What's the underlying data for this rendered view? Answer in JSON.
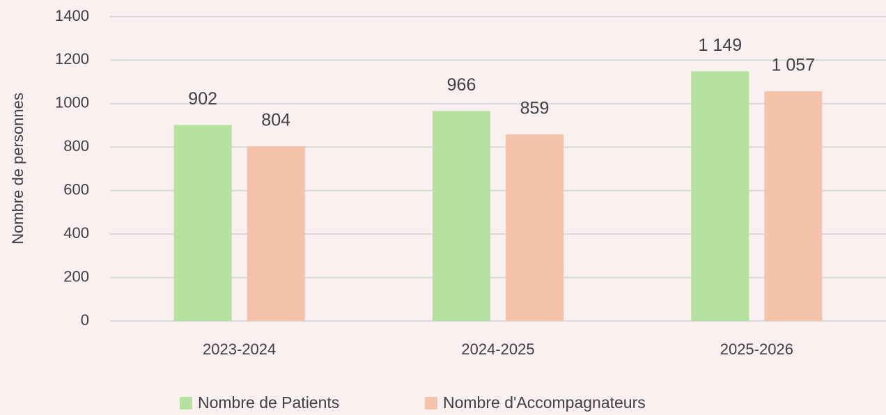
{
  "chart_data": {
    "type": "bar",
    "y_label": "Nombre de personnes",
    "categories": [
      "2023-2024",
      "2024-2025",
      "2025-2026"
    ],
    "series": [
      {
        "name": "Nombre de Patients",
        "color": "#b5e2a0",
        "values": [
          902,
          966,
          1149
        ],
        "value_labels": [
          "902",
          "966",
          "1 149"
        ]
      },
      {
        "name": "Nombre d'Accompagnateurs",
        "color": "#f5c2aa",
        "values": [
          804,
          859,
          1057
        ],
        "value_labels": [
          "804",
          "859",
          "1 057"
        ]
      }
    ],
    "ylim": [
      0,
      1400
    ],
    "yticks": [
      0,
      200,
      400,
      600,
      800,
      1000,
      1200,
      1400
    ],
    "grid": true,
    "legend": "bottom"
  }
}
